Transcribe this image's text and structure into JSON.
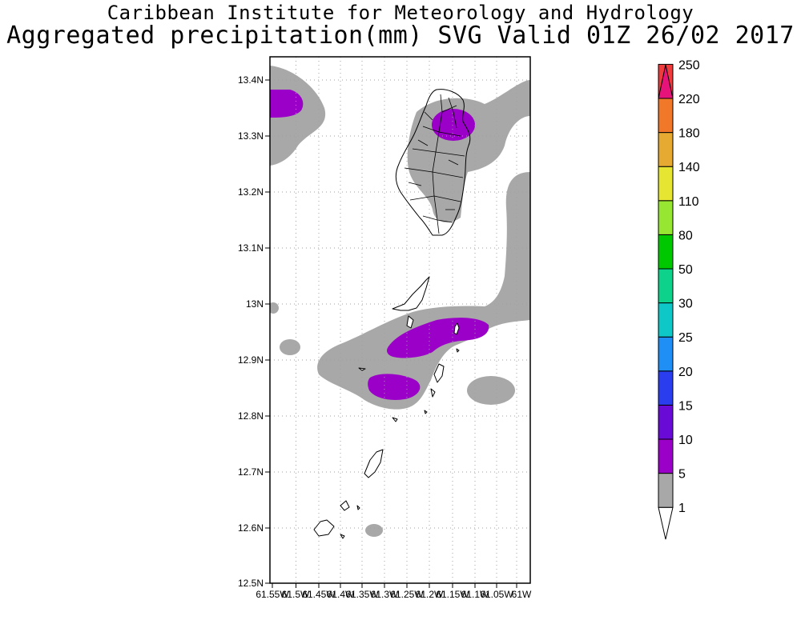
{
  "title": {
    "line1": "Caribbean Institute for Meteorology and Hydrology",
    "line2": "Aggregated precipitation(mm) SVG Valid 01Z 26/02 2017"
  },
  "map": {
    "lat_ticks": [
      "13.4N",
      "13.3N",
      "13.2N",
      "13.1N",
      "13N",
      "12.9N",
      "12.8N",
      "12.7N",
      "12.6N",
      "12.5N"
    ],
    "lon_ticks": [
      "61.55W",
      "61.5W",
      "61.45W",
      "61.4W",
      "61.35W",
      "61.3W",
      "61.25W",
      "61.2W",
      "61.15W",
      "61.1W",
      "61.05W",
      "61W"
    ],
    "lat_range": [
      12.5,
      13.44
    ],
    "lon_range": [
      -61.55,
      -61.0
    ],
    "shading_colors": {
      "1-5": "#a8a8a8",
      "5-10": "#9b00c8"
    }
  },
  "colorbar": {
    "levels": [
      "1",
      "5",
      "10",
      "15",
      "20",
      "25",
      "30",
      "50",
      "80",
      "110",
      "140",
      "180",
      "220",
      "250"
    ],
    "colors": [
      "#a8a8a8",
      "#9b00c8",
      "#6a0ad6",
      "#2a3ef0",
      "#1f8ef5",
      "#0ec8c8",
      "#0cd28c",
      "#00c800",
      "#96e632",
      "#e6e632",
      "#e6aa32",
      "#f07828",
      "#f03c3c",
      "#e6147a"
    ]
  }
}
